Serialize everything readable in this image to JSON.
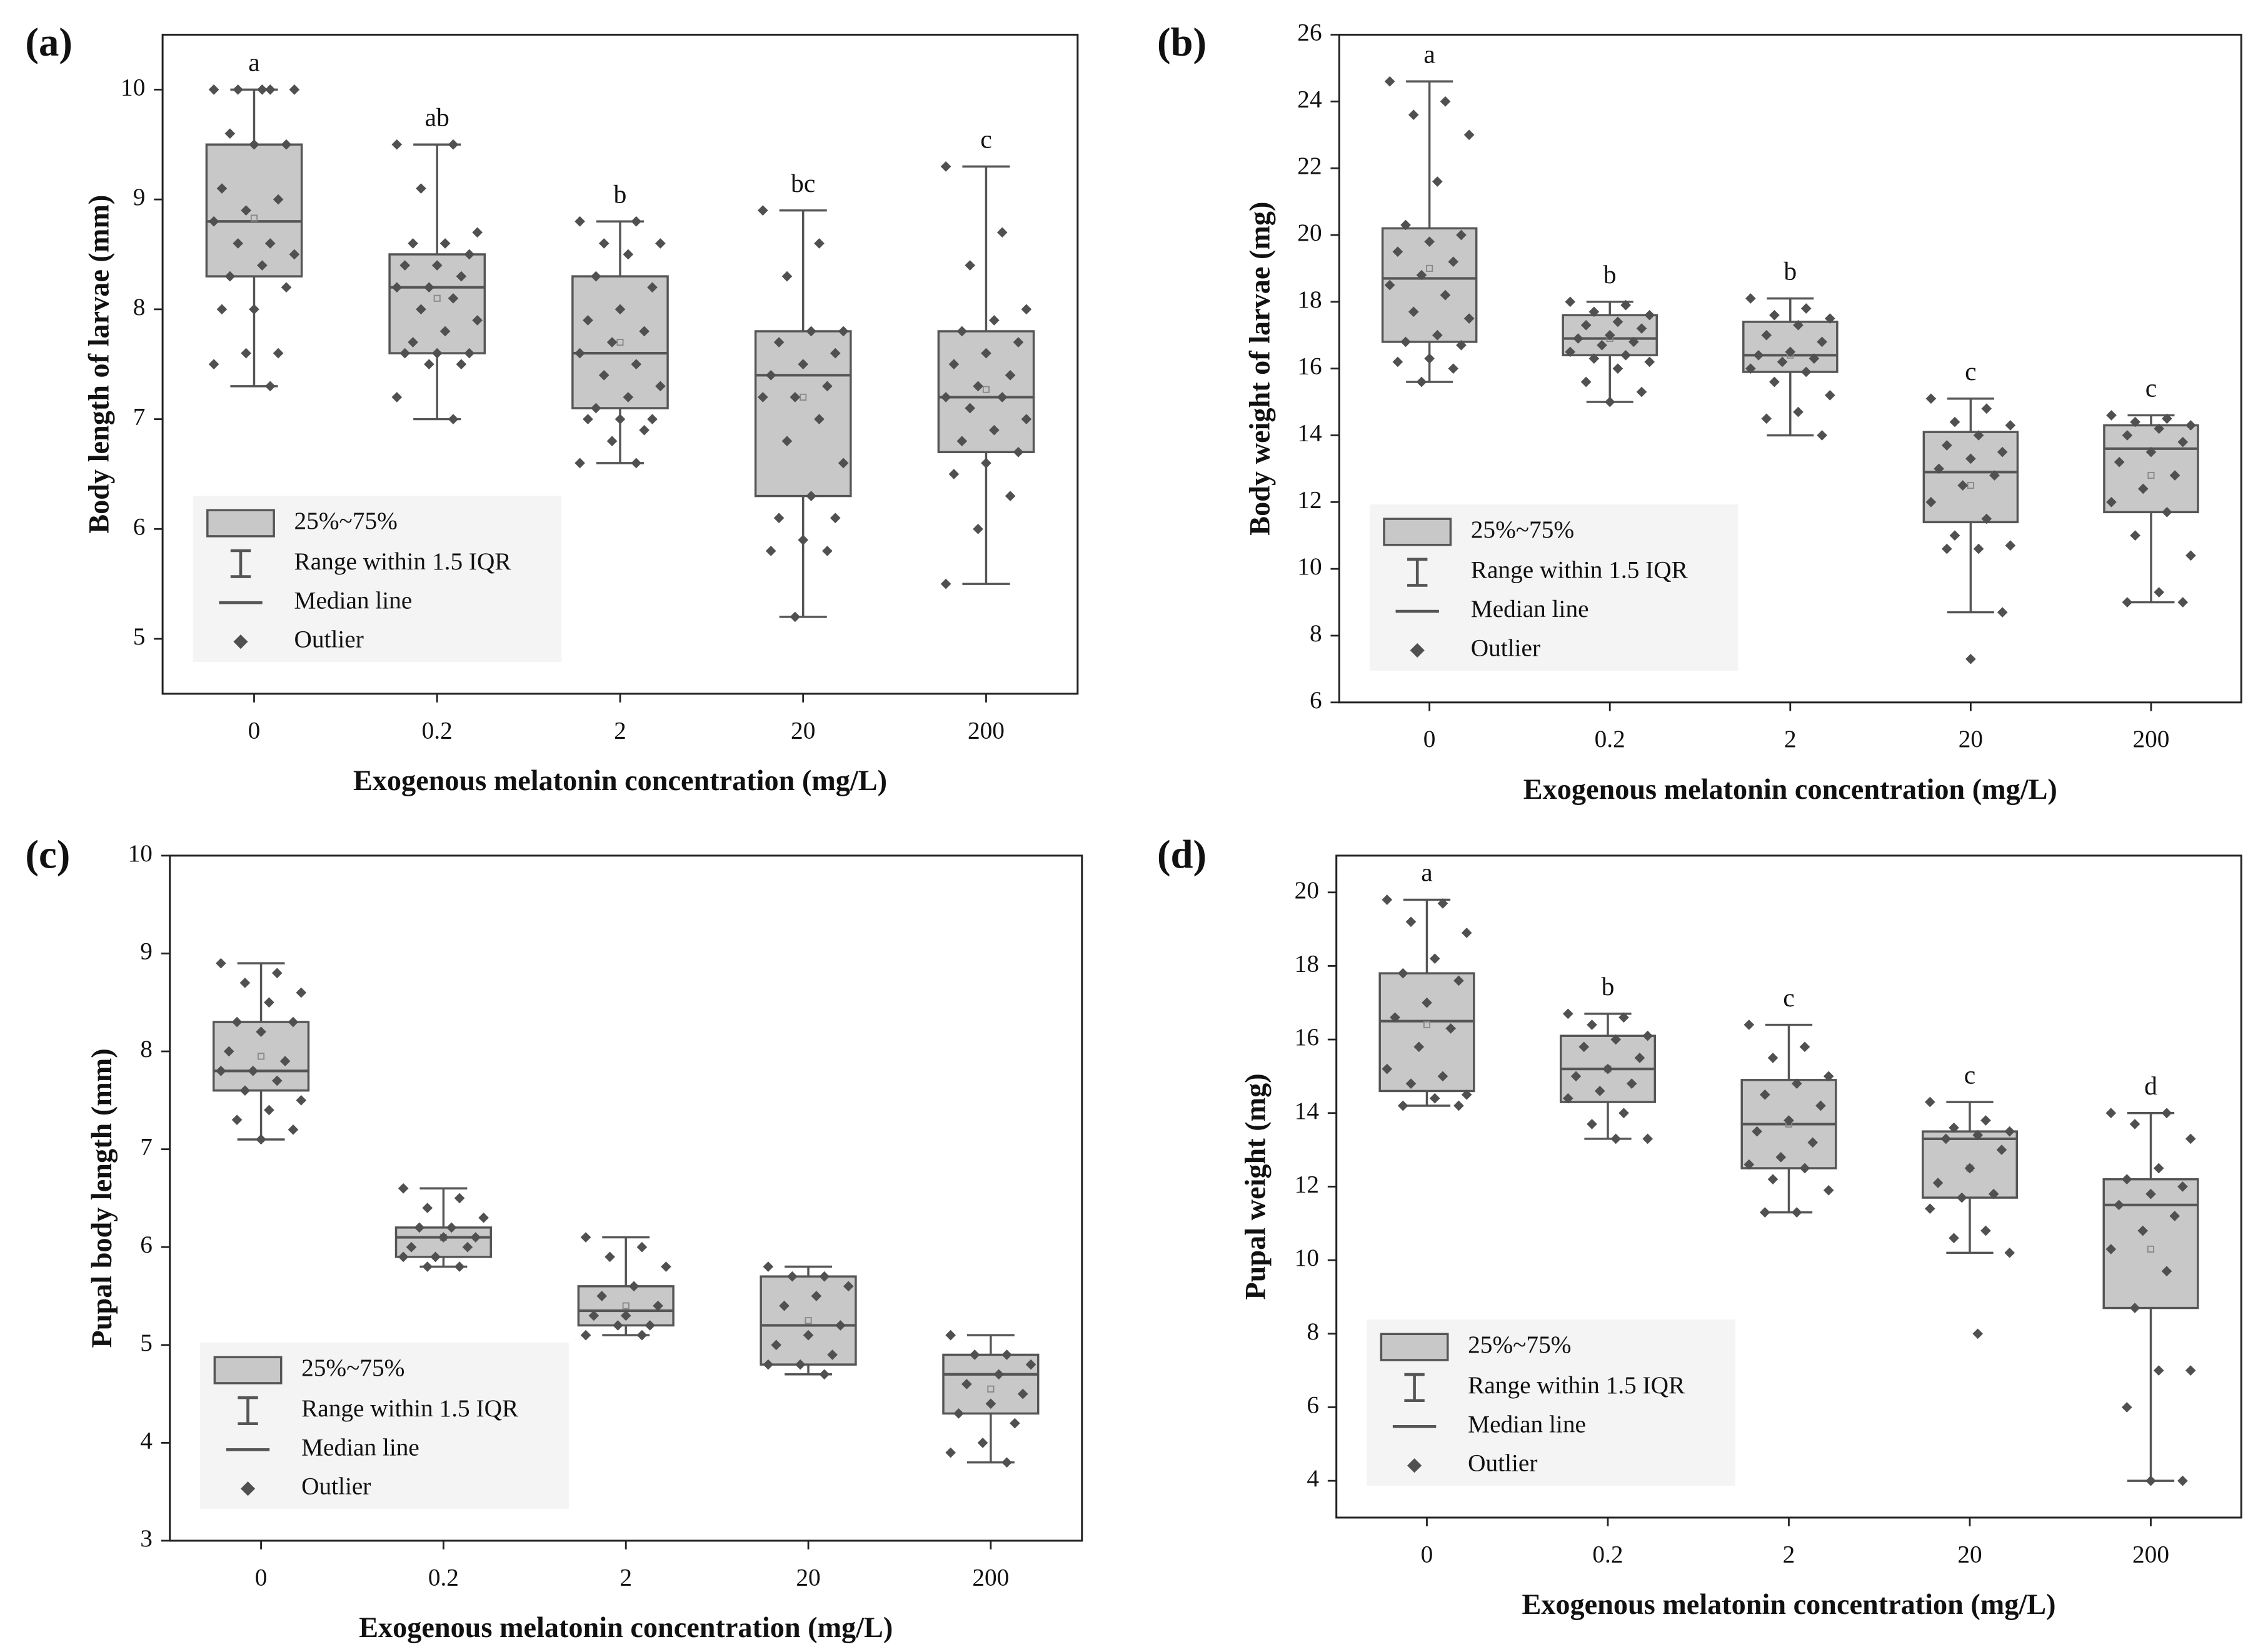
{
  "chart_data": [
    {
      "type": "box",
      "panel_label": "(a)",
      "ylabel": "Body length of  larvae (mm)",
      "xlabel": "Exogenous melatonin concentration (mg/L)",
      "categories": [
        "0",
        "0.2",
        "2",
        "20",
        "200"
      ],
      "group_letters": [
        "a",
        "ab",
        "b",
        "bc",
        "c"
      ],
      "ylim": [
        4.5,
        10.5
      ],
      "yticks": [
        5,
        6,
        7,
        8,
        9,
        10
      ],
      "color": "#c8c8c8",
      "legend_corner": "lower left",
      "legend": [
        "25%~75%",
        "Range within 1.5 IQR",
        "Median line",
        "Outlier"
      ],
      "boxes": {
        "whislo": [
          7.3,
          7.0,
          6.6,
          5.2,
          5.5
        ],
        "q1": [
          8.3,
          7.6,
          7.1,
          6.3,
          6.7
        ],
        "med": [
          8.8,
          8.2,
          7.6,
          7.4,
          7.2
        ],
        "q3": [
          9.5,
          8.5,
          8.3,
          7.8,
          7.8
        ],
        "whishi": [
          10,
          9.5,
          8.8,
          8.9,
          9.3
        ],
        "mean": [
          8.83,
          8.1,
          7.7,
          7.2,
          7.27
        ]
      },
      "points": [
        [
          10,
          10,
          10,
          10,
          10,
          9.6,
          9.5,
          9.5,
          9.1,
          9.0,
          8.9,
          8.8,
          8.6,
          8.6,
          8.5,
          8.4,
          8.3,
          8.2,
          8.0,
          8.0,
          7.6,
          7.6,
          7.5,
          7.3
        ],
        [
          9.5,
          9.5,
          9.1,
          8.7,
          8.6,
          8.6,
          8.5,
          8.4,
          8.4,
          8.3,
          8.2,
          8.2,
          8.1,
          8.0,
          7.9,
          7.8,
          7.7,
          7.6,
          7.6,
          7.6,
          7.5,
          7.5,
          7.2,
          7.0
        ],
        [
          8.8,
          8.8,
          8.6,
          8.6,
          8.5,
          8.3,
          8.2,
          8.0,
          7.9,
          7.8,
          7.7,
          7.6,
          7.5,
          7.4,
          7.3,
          7.2,
          7.1,
          7.0,
          7.0,
          7.0,
          6.9,
          6.8,
          6.6,
          6.6
        ],
        [
          8.9,
          8.6,
          8.3,
          7.8,
          7.8,
          7.7,
          7.6,
          7.5,
          7.4,
          7.3,
          7.2,
          7.2,
          7.0,
          6.8,
          6.6,
          6.3,
          6.1,
          6.1,
          5.9,
          5.8,
          5.8,
          5.2
        ],
        [
          9.3,
          8.7,
          8.4,
          8.0,
          7.9,
          7.8,
          7.7,
          7.6,
          7.5,
          7.4,
          7.3,
          7.2,
          7.2,
          7.1,
          7.0,
          6.9,
          6.8,
          6.7,
          6.6,
          6.5,
          6.3,
          6.0,
          5.5
        ]
      ]
    },
    {
      "type": "box",
      "panel_label": "(b)",
      "ylabel": "Body weight of larvae (mg)",
      "xlabel": "Exogenous melatonin concentration (mg/L)",
      "categories": [
        "0",
        "0.2",
        "2",
        "20",
        "200"
      ],
      "group_letters": [
        "a",
        "b",
        "b",
        "c",
        "c"
      ],
      "ylim": [
        6,
        26
      ],
      "yticks": [
        6,
        8,
        10,
        12,
        14,
        16,
        18,
        20,
        22,
        24,
        26
      ],
      "color": "#c8c8c8",
      "legend_corner": "lower left",
      "legend": [
        "25%~75%",
        "Range within 1.5 IQR",
        "Median line",
        "Outlier"
      ],
      "boxes": {
        "whislo": [
          15.6,
          15.0,
          14.0,
          8.7,
          9.0
        ],
        "q1": [
          16.8,
          16.4,
          15.9,
          11.4,
          11.7
        ],
        "med": [
          18.7,
          16.9,
          16.4,
          12.9,
          13.6
        ],
        "q3": [
          20.2,
          17.6,
          17.4,
          14.1,
          14.3
        ],
        "whishi": [
          24.6,
          18.0,
          18.1,
          15.1,
          14.6
        ],
        "mean": [
          19.0,
          16.9,
          16.4,
          12.5,
          12.8
        ]
      },
      "points": [
        [
          24.6,
          24.0,
          23.6,
          23.0,
          21.6,
          20.3,
          20.0,
          19.8,
          19.5,
          19.2,
          18.8,
          18.5,
          18.2,
          17.7,
          17.5,
          17.0,
          16.8,
          16.7,
          16.3,
          16.2,
          16.0,
          15.6
        ],
        [
          18.0,
          17.9,
          17.7,
          17.6,
          17.4,
          17.3,
          17.2,
          17.0,
          16.9,
          16.8,
          16.7,
          16.5,
          16.4,
          16.3,
          16.2,
          16.0,
          15.6,
          15.3,
          15.0
        ],
        [
          18.1,
          17.8,
          17.6,
          17.5,
          17.3,
          17.0,
          16.8,
          16.5,
          16.4,
          16.3,
          16.2,
          16.0,
          15.9,
          15.6,
          15.2,
          14.7,
          14.5,
          14.0
        ],
        [
          15.1,
          14.8,
          14.4,
          14.3,
          14.0,
          13.7,
          13.5,
          13.3,
          13.0,
          12.8,
          12.5,
          12.0,
          11.5,
          11.0,
          10.7,
          10.6,
          10.6,
          8.7,
          7.3
        ],
        [
          14.6,
          14.5,
          14.4,
          14.3,
          14.2,
          14.0,
          13.8,
          13.5,
          13.2,
          12.8,
          12.4,
          12.0,
          11.7,
          11.0,
          10.4,
          9.3,
          9.0,
          9.0
        ]
      ]
    },
    {
      "type": "box",
      "panel_label": "(c)",
      "ylabel": "Pupal body length (mm)",
      "xlabel": "Exogenous melatonin concentration (mg/L)",
      "categories": [
        "0",
        "0.2",
        "2",
        "20",
        "200"
      ],
      "ylim": [
        3,
        10
      ],
      "yticks": [
        3,
        4,
        5,
        6,
        7,
        8,
        9,
        10
      ],
      "color": "#c8c8c8",
      "legend_corner": "lower left",
      "legend": [
        "25%~75%",
        "Range within 1.5 IQR",
        "Median line",
        "Outlier"
      ],
      "boxes": {
        "whislo": [
          7.1,
          5.8,
          5.1,
          4.7,
          3.8
        ],
        "q1": [
          7.6,
          5.9,
          5.2,
          4.8,
          4.3
        ],
        "med": [
          7.8,
          6.1,
          5.35,
          5.2,
          4.7
        ],
        "q3": [
          8.3,
          6.2,
          5.6,
          5.7,
          4.9
        ],
        "whishi": [
          8.9,
          6.6,
          6.1,
          5.8,
          5.1
        ],
        "mean": [
          7.95,
          6.1,
          5.4,
          5.25,
          4.55
        ]
      },
      "points": [
        [
          8.9,
          8.8,
          8.7,
          8.6,
          8.5,
          8.3,
          8.3,
          8.2,
          8.0,
          7.9,
          7.8,
          7.8,
          7.7,
          7.6,
          7.5,
          7.4,
          7.3,
          7.2,
          7.1
        ],
        [
          6.6,
          6.5,
          6.4,
          6.3,
          6.2,
          6.2,
          6.1,
          6.1,
          6.0,
          6.0,
          5.9,
          5.9,
          5.8,
          5.8
        ],
        [
          6.1,
          6.0,
          5.9,
          5.8,
          5.6,
          5.5,
          5.4,
          5.3,
          5.3,
          5.2,
          5.2,
          5.1,
          5.1
        ],
        [
          5.8,
          5.7,
          5.7,
          5.6,
          5.5,
          5.4,
          5.2,
          5.1,
          5.0,
          4.9,
          4.8,
          4.8,
          4.7
        ],
        [
          5.1,
          4.9,
          4.9,
          4.8,
          4.7,
          4.6,
          4.5,
          4.4,
          4.3,
          4.2,
          4.0,
          3.9,
          3.8
        ]
      ]
    },
    {
      "type": "box",
      "panel_label": "(d)",
      "ylabel": "Pupal weight (mg)",
      "xlabel": "Exogenous melatonin concentration (mg/L)",
      "categories": [
        "0",
        "0.2",
        "2",
        "20",
        "200"
      ],
      "group_letters": [
        "a",
        "b",
        "c",
        "c",
        "d"
      ],
      "ylim": [
        3,
        21
      ],
      "yticks": [
        4,
        6,
        8,
        10,
        12,
        14,
        16,
        18,
        20
      ],
      "color": "#c8c8c8",
      "legend_corner": "lower left",
      "legend": [
        "25%~75%",
        "Range within 1.5 IQR",
        "Median line",
        "Outlier"
      ],
      "boxes": {
        "whislo": [
          14.2,
          13.3,
          11.3,
          10.2,
          4.0
        ],
        "q1": [
          14.6,
          14.3,
          12.5,
          11.7,
          8.7
        ],
        "med": [
          16.5,
          15.2,
          13.7,
          13.3,
          11.5
        ],
        "q3": [
          17.8,
          16.1,
          14.9,
          13.5,
          12.2
        ],
        "whishi": [
          19.8,
          16.7,
          16.4,
          14.3,
          14.0
        ],
        "mean": [
          16.4,
          15.2,
          13.7,
          12.5,
          10.3
        ]
      },
      "points": [
        [
          19.8,
          19.7,
          19.2,
          18.9,
          18.2,
          17.8,
          17.6,
          17.0,
          16.6,
          16.3,
          15.8,
          15.2,
          15.0,
          14.8,
          14.5,
          14.4,
          14.2,
          14.2
        ],
        [
          16.7,
          16.6,
          16.4,
          16.1,
          16.0,
          15.8,
          15.5,
          15.2,
          15.0,
          14.8,
          14.6,
          14.4,
          14.0,
          13.7,
          13.3,
          13.3
        ],
        [
          16.4,
          15.8,
          15.5,
          15.0,
          14.8,
          14.5,
          14.2,
          13.8,
          13.5,
          13.2,
          12.8,
          12.6,
          12.5,
          12.2,
          11.9,
          11.3,
          11.3
        ],
        [
          14.3,
          13.8,
          13.6,
          13.5,
          13.4,
          13.3,
          13.0,
          12.5,
          12.1,
          11.8,
          11.7,
          11.4,
          10.8,
          10.6,
          10.2,
          8.0
        ],
        [
          14.0,
          14.0,
          13.7,
          13.3,
          12.5,
          12.2,
          12.0,
          11.8,
          11.5,
          11.2,
          10.8,
          10.3,
          9.7,
          8.7,
          7.0,
          7.0,
          6.0,
          4.0,
          4.0
        ]
      ]
    }
  ]
}
